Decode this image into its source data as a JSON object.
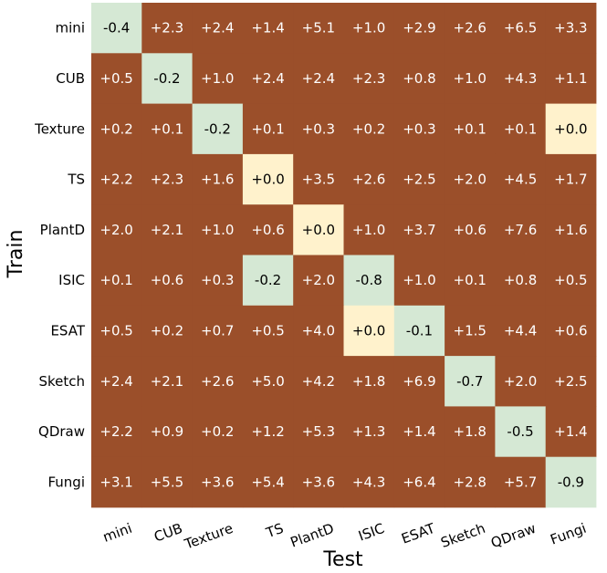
{
  "chart_data": {
    "type": "heatmap",
    "title": "",
    "xlabel": "Test",
    "ylabel": "Train",
    "x_categories": [
      "mini",
      "CUB",
      "Texture",
      "TS",
      "PlantD",
      "ISIC",
      "ESAT",
      "Sketch",
      "QDraw",
      "Fungi"
    ],
    "y_categories": [
      "mini",
      "CUB",
      "Texture",
      "TS",
      "PlantD",
      "ISIC",
      "ESAT",
      "Sketch",
      "QDraw",
      "Fungi"
    ],
    "values": [
      [
        "-0.4",
        "+2.3",
        "+2.4",
        "+1.4",
        "+5.1",
        "+1.0",
        "+2.9",
        "+2.6",
        "+6.5",
        "+3.3"
      ],
      [
        "+0.5",
        "-0.2",
        "+1.0",
        "+2.4",
        "+2.4",
        "+2.3",
        "+0.8",
        "+1.0",
        "+4.3",
        "+1.1"
      ],
      [
        "+0.2",
        "+0.1",
        "-0.2",
        "+0.1",
        "+0.3",
        "+0.2",
        "+0.3",
        "+0.1",
        "+0.1",
        "+0.0"
      ],
      [
        "+2.2",
        "+2.3",
        "+1.6",
        "+0.0",
        "+3.5",
        "+2.6",
        "+2.5",
        "+2.0",
        "+4.5",
        "+1.7"
      ],
      [
        "+2.0",
        "+2.1",
        "+1.0",
        "+0.6",
        "+0.0",
        "+1.0",
        "+3.7",
        "+0.6",
        "+7.6",
        "+1.6"
      ],
      [
        "+0.1",
        "+0.6",
        "+0.3",
        "-0.2",
        "+2.0",
        "-0.8",
        "+1.0",
        "+0.1",
        "+0.8",
        "+0.5"
      ],
      [
        "+0.5",
        "+0.2",
        "+0.7",
        "+0.5",
        "+4.0",
        "+0.0",
        "-0.1",
        "+1.5",
        "+4.4",
        "+0.6"
      ],
      [
        "+2.4",
        "+2.1",
        "+2.6",
        "+5.0",
        "+4.2",
        "+1.8",
        "+6.9",
        "-0.7",
        "+2.0",
        "+2.5"
      ],
      [
        "+2.2",
        "+0.9",
        "+0.2",
        "+1.2",
        "+5.3",
        "+1.3",
        "+1.4",
        "+1.8",
        "-0.5",
        "+1.4"
      ],
      [
        "+3.1",
        "+5.5",
        "+3.6",
        "+5.4",
        "+3.6",
        "+4.3",
        "+6.4",
        "+2.8",
        "+5.7",
        "-0.9"
      ]
    ],
    "colors": {
      "positive": "#9b4f2a",
      "negative": "#d5e8d4",
      "zero": "#fff2cc",
      "text_on_positive": "#ffffff",
      "text_on_light": "#000000"
    },
    "grid": false,
    "legend": "none"
  }
}
